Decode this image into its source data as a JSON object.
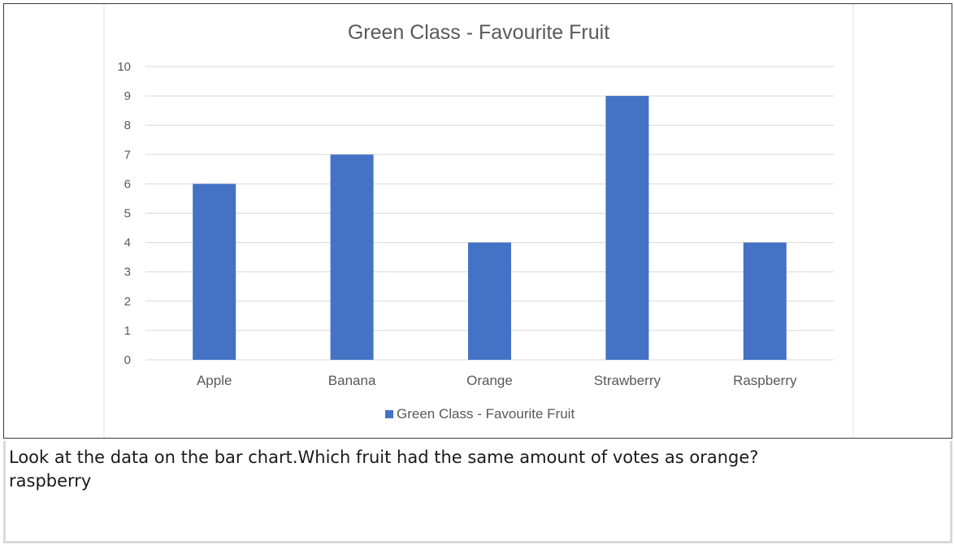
{
  "chart_data": {
    "type": "bar",
    "title": "Green Class -  Favourite Fruit",
    "categories": [
      "Apple",
      "Banana",
      "Orange",
      "Strawberry",
      "Raspberry"
    ],
    "series": [
      {
        "name": "Green Class -  Favourite Fruit",
        "values": [
          6,
          7,
          4,
          9,
          4
        ],
        "color": "#4472c4"
      }
    ],
    "ylim": [
      0,
      10
    ],
    "yticks": [
      "0",
      "1",
      "2",
      "3",
      "4",
      "5",
      "6",
      "7",
      "8",
      "9",
      "10"
    ],
    "grid": true,
    "legend": "bottom-center",
    "colors": {
      "gridline": "#d9d9d9",
      "text": "#595959",
      "title": "#595959"
    }
  },
  "question": {
    "text": "Look at the data on the bar chart.Which fruit had the same amount of votes as orange?",
    "answer": "raspberry"
  }
}
